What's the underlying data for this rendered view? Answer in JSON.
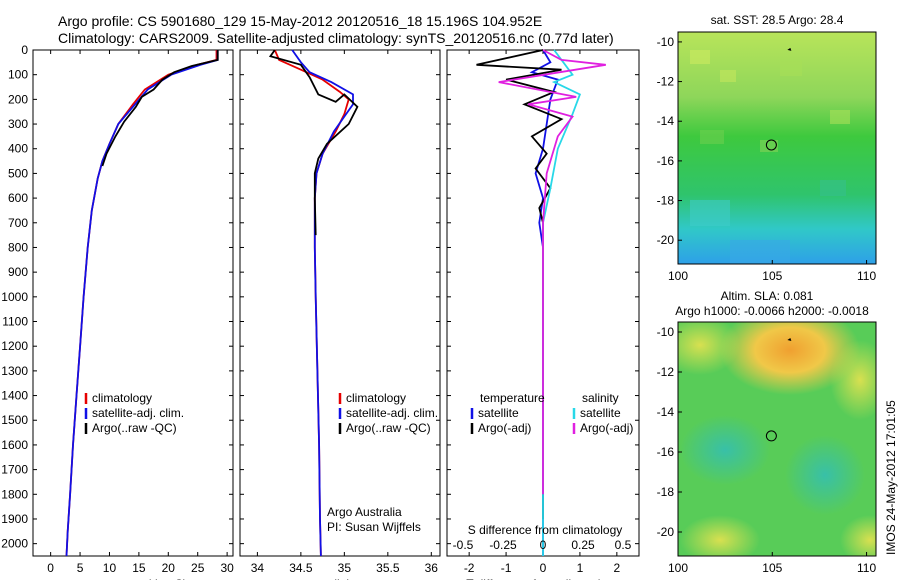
{
  "header": {
    "line1": "Argo profile: CS 5901680_129 15-May-2012 20120516_18 15.196S 104.952E",
    "line2": "Climatology: CARS2009. Satellite-adjusted climatology: synTS_20120516.nc (0.77d later)"
  },
  "side_stamp": "IMOS 24-May-2012 17:01:05",
  "colors": {
    "climatology": "#e60000",
    "satellite": "#1010e6",
    "argo": "#000000",
    "salinity_satellite": "#28d8e8",
    "salinity_argo": "#e020e0"
  },
  "chart_data": [
    {
      "id": "temperature",
      "type": "line",
      "xlabel": "temperature (deg C)",
      "ylabel": "",
      "xlim": [
        -3,
        31
      ],
      "ylim": [
        2050,
        0
      ],
      "xticks": [
        "0",
        "5",
        "10",
        "15",
        "20",
        "25",
        "30"
      ],
      "xtick_values": [
        0,
        5,
        10,
        15,
        20,
        25,
        30
      ],
      "yticks": [
        "0",
        "100",
        "200",
        "300",
        "400",
        "500",
        "600",
        "700",
        "800",
        "900",
        "1000",
        "1100",
        "1200",
        "1300",
        "1400",
        "1500",
        "1600",
        "1700",
        "1800",
        "1900",
        "2000"
      ],
      "ytick_values": [
        0,
        100,
        200,
        300,
        400,
        500,
        600,
        700,
        800,
        900,
        1000,
        1100,
        1200,
        1300,
        1400,
        1500,
        1600,
        1700,
        1800,
        1900,
        2000
      ],
      "legend": [
        "climatology",
        "satellite-adj. clim.",
        "Argo(..raw -QC)"
      ],
      "series": [
        {
          "name": "climatology",
          "color": "#e60000",
          "points": [
            [
              28.2,
              0
            ],
            [
              28.2,
              40
            ],
            [
              25,
              60
            ],
            [
              20,
              100
            ],
            [
              16,
              160
            ],
            [
              14,
              220
            ],
            [
              11.5,
              300
            ],
            [
              10,
              380
            ],
            [
              8.8,
              450
            ],
            [
              8,
              520
            ],
            [
              7,
              650
            ],
            [
              6.3,
              800
            ],
            [
              5.6,
              1000
            ],
            [
              5,
              1200
            ],
            [
              4.4,
              1400
            ],
            [
              3.8,
              1600
            ],
            [
              3.3,
              1800
            ],
            [
              2.9,
              1950
            ],
            [
              2.7,
              2050
            ]
          ]
        },
        {
          "name": "satellite-adj. clim.",
          "color": "#1010e6",
          "points": [
            [
              28.4,
              0
            ],
            [
              28.4,
              40
            ],
            [
              25.5,
              60
            ],
            [
              20.5,
              100
            ],
            [
              16.5,
              160
            ],
            [
              14,
              230
            ],
            [
              11.5,
              300
            ],
            [
              10,
              380
            ],
            [
              8.8,
              450
            ],
            [
              8,
              520
            ],
            [
              7,
              650
            ],
            [
              6.3,
              800
            ],
            [
              5.6,
              1000
            ],
            [
              5,
              1200
            ],
            [
              4.4,
              1400
            ],
            [
              3.8,
              1600
            ],
            [
              3.3,
              1800
            ],
            [
              2.9,
              1950
            ],
            [
              2.7,
              2050
            ]
          ]
        },
        {
          "name": "Argo(..raw -QC)",
          "color": "#000000",
          "points": [
            [
              28.4,
              0
            ],
            [
              28.4,
              40
            ],
            [
              24,
              65
            ],
            [
              21,
              90
            ],
            [
              19,
              120
            ],
            [
              17.5,
              160
            ],
            [
              15.5,
              190
            ],
            [
              14.5,
              230
            ],
            [
              12.5,
              290
            ],
            [
              11,
              350
            ],
            [
              9.5,
              420
            ],
            [
              8.8,
              470
            ]
          ]
        }
      ]
    },
    {
      "id": "salinity",
      "type": "line",
      "xlabel": "salinity",
      "ylabel": "",
      "xlim": [
        33.8,
        36.1
      ],
      "ylim": [
        2050,
        0
      ],
      "xticks": [
        "34",
        "34.5",
        "35",
        "35.5",
        "36"
      ],
      "xtick_values": [
        34,
        34.5,
        35,
        35.5,
        36
      ],
      "legend": [
        "climatology",
        "satellite-adj. clim.",
        "Argo(..raw -QC)"
      ],
      "annotation": [
        "Argo Australia",
        "PI: Susan Wijffels"
      ],
      "series": [
        {
          "name": "climatology",
          "color": "#e60000",
          "points": [
            [
              34.2,
              0
            ],
            [
              34.25,
              40
            ],
            [
              34.5,
              80
            ],
            [
              34.75,
              120
            ],
            [
              34.95,
              170
            ],
            [
              35.05,
              200
            ],
            [
              35.0,
              260
            ],
            [
              34.9,
              330
            ],
            [
              34.75,
              420
            ],
            [
              34.68,
              500
            ],
            [
              34.66,
              600
            ],
            [
              34.66,
              800
            ],
            [
              34.67,
              1000
            ],
            [
              34.69,
              1300
            ],
            [
              34.71,
              1600
            ],
            [
              34.72,
              1900
            ],
            [
              34.73,
              2050
            ]
          ]
        },
        {
          "name": "satellite-adj. clim.",
          "color": "#1010e6",
          "points": [
            [
              34.4,
              0
            ],
            [
              34.5,
              50
            ],
            [
              34.6,
              90
            ],
            [
              34.85,
              130
            ],
            [
              35.1,
              180
            ],
            [
              35.1,
              220
            ],
            [
              35.0,
              270
            ],
            [
              34.88,
              330
            ],
            [
              34.75,
              420
            ],
            [
              34.68,
              500
            ],
            [
              34.66,
              600
            ],
            [
              34.66,
              800
            ],
            [
              34.67,
              1000
            ],
            [
              34.69,
              1300
            ],
            [
              34.71,
              1600
            ],
            [
              34.72,
              1900
            ],
            [
              34.73,
              2050
            ]
          ]
        },
        {
          "name": "Argo(..raw -QC)",
          "color": "#000000",
          "points": [
            [
              34.2,
              0
            ],
            [
              34.15,
              25
            ],
            [
              34.5,
              60
            ],
            [
              34.6,
              110
            ],
            [
              34.7,
              180
            ],
            [
              34.9,
              210
            ],
            [
              35.0,
              180
            ],
            [
              35.15,
              230
            ],
            [
              35.05,
              300
            ],
            [
              34.8,
              380
            ],
            [
              34.7,
              440
            ],
            [
              34.66,
              500
            ],
            [
              34.66,
              600
            ],
            [
              34.67,
              750
            ]
          ]
        }
      ]
    },
    {
      "id": "difference",
      "type": "line",
      "xlabel": "T difference from climatology",
      "xlabel_top": "S difference from climatology",
      "xlim": [
        -2.6,
        2.6
      ],
      "ylim": [
        2050,
        0
      ],
      "xticks": [
        "-2",
        "-1",
        "0",
        "1",
        "2"
      ],
      "xtick_values": [
        -2,
        -1,
        0,
        1,
        2
      ],
      "s_xticks": [
        "-0.5",
        "-0.25",
        "0",
        "0.25",
        "0.5"
      ],
      "s_xtick_values": [
        -0.5,
        -0.25,
        0,
        0.25,
        0.5
      ],
      "legend_temperature": [
        "temperature",
        "satellite",
        "Argo(-adj)"
      ],
      "legend_salinity": [
        "salinity",
        "satellite",
        "Argo(-adj)"
      ],
      "series": [
        {
          "name": "satellite",
          "group": "temperature",
          "color": "#1010e6",
          "points": [
            [
              0,
              0
            ],
            [
              0.2,
              50
            ],
            [
              -0.3,
              90
            ],
            [
              0.4,
              120
            ],
            [
              0.2,
              200
            ],
            [
              0.1,
              300
            ],
            [
              0,
              400
            ],
            [
              -0.2,
              500
            ],
            [
              0,
              600
            ],
            [
              -0.1,
              700
            ],
            [
              0,
              800
            ],
            [
              0,
              1200
            ],
            [
              0,
              2050
            ]
          ]
        },
        {
          "name": "Argo(-adj)",
          "group": "temperature",
          "color": "#000000",
          "points": [
            [
              0,
              0
            ],
            [
              -1.8,
              60
            ],
            [
              0.5,
              80
            ],
            [
              -1,
              120
            ],
            [
              0.3,
              170
            ],
            [
              -0.5,
              220
            ],
            [
              0.5,
              280
            ],
            [
              -0.3,
              350
            ],
            [
              0.1,
              420
            ],
            [
              -0.2,
              480
            ],
            [
              0.2,
              560
            ],
            [
              -0.1,
              640
            ],
            [
              0,
              700
            ],
            [
              0,
              1900
            ]
          ]
        },
        {
          "name": "satellite",
          "group": "salinity",
          "color": "#28d8e8",
          "points": [
            [
              0.3,
              0
            ],
            [
              0.6,
              60
            ],
            [
              0.8,
              100
            ],
            [
              0.3,
              130
            ],
            [
              1.0,
              180
            ],
            [
              0.8,
              260
            ],
            [
              0.4,
              400
            ],
            [
              0.2,
              560
            ],
            [
              0,
              700
            ],
            [
              0,
              2050
            ]
          ]
        },
        {
          "name": "Argo(-adj)",
          "group": "salinity",
          "color": "#e020e0",
          "points": [
            [
              0,
              0
            ],
            [
              0.5,
              40
            ],
            [
              1.7,
              60
            ],
            [
              -1.2,
              130
            ],
            [
              0.9,
              190
            ],
            [
              -0.4,
              220
            ],
            [
              0.8,
              270
            ],
            [
              0.4,
              350
            ],
            [
              0.1,
              500
            ],
            [
              0,
              700
            ],
            [
              0,
              1800
            ]
          ]
        }
      ]
    },
    {
      "id": "sst_map",
      "type": "heatmap",
      "title": "sat. SST: 28.5 Argo: 28.4",
      "xlim": [
        100,
        110.5
      ],
      "ylim": [
        -21.2,
        -9.5
      ],
      "xticks": [
        "100",
        "105",
        "110"
      ],
      "xtick_values": [
        100,
        105,
        110
      ],
      "yticks": [
        "-10",
        "-12",
        "-14",
        "-16",
        "-18",
        "-20"
      ],
      "ytick_values": [
        -10,
        -12,
        -14,
        -16,
        -18,
        -20
      ],
      "marker": {
        "lon": 104.952,
        "lat": -15.196
      }
    },
    {
      "id": "sla_map",
      "type": "heatmap",
      "title": "Altim. SLA: 0.081",
      "subtitle": "Argo h1000: -0.0066 h2000: -0.0018",
      "xlim": [
        100,
        110.5
      ],
      "ylim": [
        -21.2,
        -9.5
      ],
      "xticks": [
        "100",
        "105",
        "110"
      ],
      "xtick_values": [
        100,
        105,
        110
      ],
      "yticks": [
        "-10",
        "-12",
        "-14",
        "-16",
        "-18",
        "-20"
      ],
      "ytick_values": [
        -10,
        -12,
        -14,
        -16,
        -18,
        -20
      ],
      "marker": {
        "lon": 104.952,
        "lat": -15.196
      }
    }
  ]
}
